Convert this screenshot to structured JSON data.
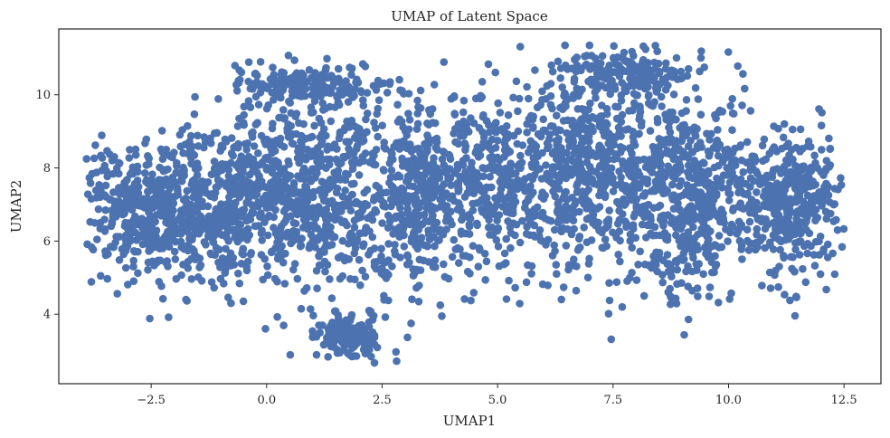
{
  "chart_data": {
    "type": "scatter",
    "title": "UMAP of Latent Space",
    "xlabel": "UMAP1",
    "ylabel": "UMAP2",
    "xlim": [
      -4.5,
      13.3
    ],
    "ylim": [
      2.1,
      11.8
    ],
    "x_ticks": [
      -2.5,
      0.0,
      2.5,
      5.0,
      7.5,
      10.0,
      12.5
    ],
    "x_tick_labels": [
      "−2.5",
      "0.0",
      "2.5",
      "5.0",
      "7.5",
      "10.0",
      "12.5"
    ],
    "y_ticks": [
      4,
      6,
      8,
      10
    ],
    "y_tick_labels": [
      "4",
      "6",
      "8",
      "10"
    ],
    "grid": false,
    "legend": "none",
    "marker_color": "#4c72b0",
    "point_count": 4000,
    "point_cloud_regions": [
      {
        "cx": -2.6,
        "cy": 6.8,
        "rx": 1.5,
        "ry": 1.9,
        "weight": 0.1
      },
      {
        "cx": -0.8,
        "cy": 7.0,
        "rx": 1.4,
        "ry": 2.2,
        "weight": 0.1
      },
      {
        "cx": 1.0,
        "cy": 7.6,
        "rx": 1.6,
        "ry": 2.8,
        "weight": 0.13
      },
      {
        "cx": 1.7,
        "cy": 3.4,
        "rx": 0.7,
        "ry": 0.6,
        "weight": 0.03
      },
      {
        "cx": 3.2,
        "cy": 7.2,
        "rx": 1.3,
        "ry": 2.6,
        "weight": 0.1
      },
      {
        "cx": 5.0,
        "cy": 7.6,
        "rx": 1.3,
        "ry": 2.5,
        "weight": 0.09
      },
      {
        "cx": 7.0,
        "cy": 8.0,
        "rx": 1.5,
        "ry": 3.0,
        "weight": 0.14
      },
      {
        "cx": 9.2,
        "cy": 7.3,
        "rx": 1.6,
        "ry": 2.6,
        "weight": 0.14
      },
      {
        "cx": 11.4,
        "cy": 7.0,
        "rx": 1.1,
        "ry": 1.8,
        "weight": 0.09
      },
      {
        "cx": 7.9,
        "cy": 10.6,
        "rx": 1.2,
        "ry": 0.6,
        "weight": 0.04
      },
      {
        "cx": 0.8,
        "cy": 10.3,
        "rx": 1.6,
        "ry": 0.5,
        "weight": 0.04
      }
    ]
  }
}
